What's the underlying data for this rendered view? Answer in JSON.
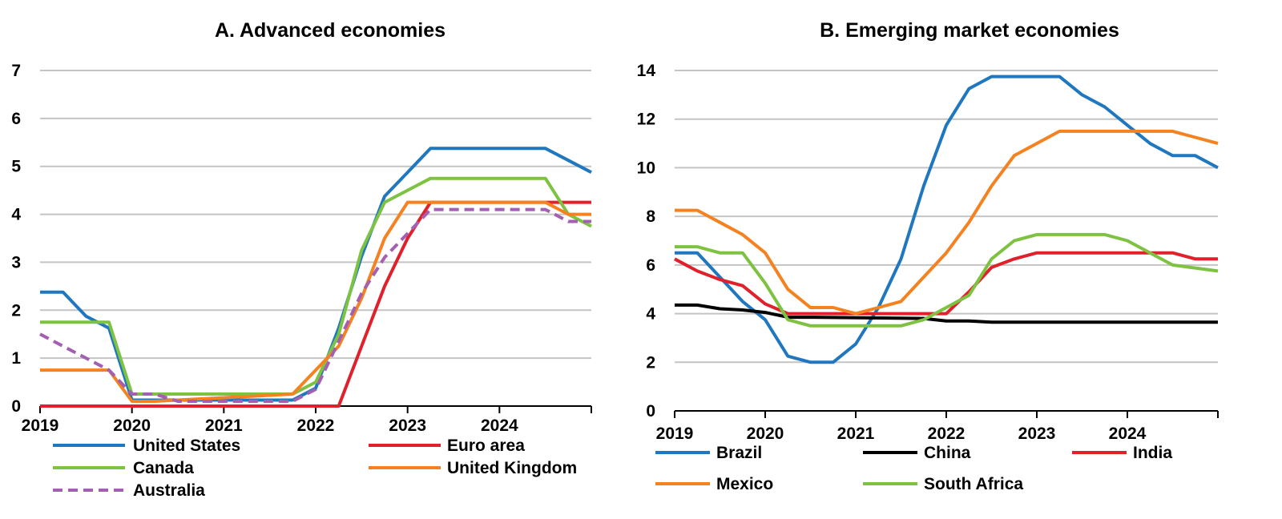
{
  "chart_data": [
    {
      "type": "line",
      "title": "A. Advanced economies",
      "xlabel": "",
      "ylabel": "",
      "xlim": [
        2019.0,
        2025.0
      ],
      "ylim": [
        0,
        7
      ],
      "yticks": [
        "0",
        "1",
        "2",
        "3",
        "4",
        "5",
        "6",
        "7"
      ],
      "xticks": [
        "2019",
        "2020",
        "2021",
        "2022",
        "2023",
        "2024"
      ],
      "grid": true,
      "legend": "bottom",
      "series": [
        {
          "name": "United States",
          "color": "#1f77c0",
          "dash": false,
          "x": [
            2019.0,
            2019.25,
            2019.5,
            2019.75,
            2020.0,
            2020.25,
            2021.75,
            2022.0,
            2022.25,
            2022.5,
            2022.75,
            2023.0,
            2023.25,
            2023.5,
            2024.5,
            2024.75,
            2025.0
          ],
          "y": [
            2.375,
            2.375,
            1.875,
            1.625,
            0.125,
            0.125,
            0.125,
            0.375,
            1.625,
            3.125,
            4.375,
            4.875,
            5.375,
            5.375,
            5.375,
            5.125,
            4.875
          ]
        },
        {
          "name": "Euro area",
          "color": "#e0202a",
          "dash": false,
          "x": [
            2019.0,
            2022.25,
            2022.5,
            2022.75,
            2023.0,
            2023.25,
            2023.5,
            2025.0
          ],
          "y": [
            0.0,
            0.0,
            1.25,
            2.5,
            3.5,
            4.25,
            4.25,
            4.25
          ]
        },
        {
          "name": "Canada",
          "color": "#7dc241",
          "dash": false,
          "x": [
            2019.0,
            2019.75,
            2020.0,
            2020.25,
            2021.75,
            2022.0,
            2022.25,
            2022.5,
            2022.75,
            2023.0,
            2023.25,
            2023.5,
            2024.5,
            2024.75,
            2025.0
          ],
          "y": [
            1.75,
            1.75,
            0.25,
            0.25,
            0.25,
            0.5,
            1.5,
            3.25,
            4.25,
            4.5,
            4.75,
            4.75,
            4.75,
            4.0,
            3.75
          ]
        },
        {
          "name": "United Kingdom",
          "color": "#f58220",
          "dash": false,
          "x": [
            2019.0,
            2019.75,
            2020.0,
            2020.25,
            2021.75,
            2022.0,
            2022.25,
            2022.5,
            2022.75,
            2023.0,
            2023.25,
            2024.5,
            2024.75,
            2025.0
          ],
          "y": [
            0.75,
            0.75,
            0.1,
            0.1,
            0.25,
            0.75,
            1.25,
            2.25,
            3.5,
            4.25,
            4.25,
            4.25,
            4.0,
            4.0
          ]
        },
        {
          "name": "Australia",
          "color": "#a35fb2",
          "dash": true,
          "x": [
            2019.0,
            2019.25,
            2019.5,
            2019.75,
            2020.0,
            2020.25,
            2020.5,
            2021.75,
            2022.0,
            2022.25,
            2022.5,
            2022.75,
            2023.0,
            2023.25,
            2023.5,
            2024.5,
            2024.75,
            2025.0
          ],
          "y": [
            1.5,
            1.25,
            1.0,
            0.75,
            0.25,
            0.25,
            0.1,
            0.1,
            0.35,
            1.35,
            2.35,
            3.1,
            3.6,
            4.1,
            4.1,
            4.1,
            3.85,
            3.85
          ]
        }
      ]
    },
    {
      "type": "line",
      "title": "B. Emerging market economies",
      "xlabel": "",
      "ylabel": "",
      "xlim": [
        2019.0,
        2025.0
      ],
      "ylim": [
        0,
        14
      ],
      "yticks": [
        "0",
        "2",
        "4",
        "6",
        "8",
        "10",
        "12",
        "14"
      ],
      "xticks": [
        "2019",
        "2020",
        "2021",
        "2022",
        "2023",
        "2024"
      ],
      "grid": true,
      "legend": "bottom",
      "series": [
        {
          "name": "Brazil",
          "color": "#1f77c0",
          "dash": false,
          "x": [
            2019.0,
            2019.25,
            2019.5,
            2019.75,
            2020.0,
            2020.25,
            2020.5,
            2020.75,
            2021.0,
            2021.25,
            2021.5,
            2021.75,
            2022.0,
            2022.25,
            2022.5,
            2022.75,
            2023.0,
            2023.25,
            2023.5,
            2023.75,
            2024.0,
            2024.25,
            2024.5,
            2024.75,
            2025.0
          ],
          "y": [
            6.5,
            6.5,
            5.5,
            4.5,
            3.75,
            2.25,
            2.0,
            2.0,
            2.75,
            4.25,
            6.25,
            9.25,
            11.75,
            13.25,
            13.75,
            13.75,
            13.75,
            13.75,
            13.0,
            12.5,
            11.75,
            11.0,
            10.5,
            10.5,
            10.0
          ]
        },
        {
          "name": "China",
          "color": "#000000",
          "dash": false,
          "x": [
            2019.0,
            2019.25,
            2019.5,
            2019.75,
            2020.0,
            2020.25,
            2020.5,
            2021.75,
            2022.0,
            2022.25,
            2022.5,
            2025.0
          ],
          "y": [
            4.35,
            4.35,
            4.2,
            4.15,
            4.05,
            3.85,
            3.85,
            3.8,
            3.7,
            3.7,
            3.65,
            3.65
          ]
        },
        {
          "name": "India",
          "color": "#e0202a",
          "dash": false,
          "x": [
            2019.0,
            2019.25,
            2019.5,
            2019.75,
            2020.0,
            2020.25,
            2022.0,
            2022.25,
            2022.5,
            2022.75,
            2023.0,
            2023.25,
            2024.5,
            2024.75,
            2025.0
          ],
          "y": [
            6.25,
            5.75,
            5.4,
            5.15,
            4.4,
            4.0,
            4.0,
            4.9,
            5.9,
            6.25,
            6.5,
            6.5,
            6.5,
            6.25,
            6.25
          ]
        },
        {
          "name": "Mexico",
          "color": "#f58220",
          "dash": false,
          "x": [
            2019.0,
            2019.25,
            2019.5,
            2019.75,
            2020.0,
            2020.25,
            2020.5,
            2020.75,
            2021.0,
            2021.25,
            2021.5,
            2021.75,
            2022.0,
            2022.25,
            2022.5,
            2022.75,
            2023.0,
            2023.25,
            2024.25,
            2024.5,
            2024.75,
            2025.0
          ],
          "y": [
            8.25,
            8.25,
            7.75,
            7.25,
            6.5,
            5.0,
            4.25,
            4.25,
            4.0,
            4.25,
            4.5,
            5.5,
            6.5,
            7.75,
            9.25,
            10.5,
            11.0,
            11.5,
            11.5,
            11.5,
            11.25,
            11.0
          ]
        },
        {
          "name": "South Africa",
          "color": "#7dc241",
          "dash": false,
          "x": [
            2019.0,
            2019.25,
            2019.5,
            2019.75,
            2020.0,
            2020.25,
            2020.5,
            2021.5,
            2021.75,
            2022.0,
            2022.25,
            2022.5,
            2022.75,
            2023.0,
            2023.25,
            2023.75,
            2024.0,
            2024.25,
            2024.5,
            2025.0
          ],
          "y": [
            6.75,
            6.75,
            6.5,
            6.5,
            5.25,
            3.75,
            3.5,
            3.5,
            3.75,
            4.25,
            4.75,
            6.25,
            7.0,
            7.25,
            7.25,
            7.25,
            7.0,
            6.5,
            6.0,
            5.75
          ]
        }
      ]
    }
  ]
}
